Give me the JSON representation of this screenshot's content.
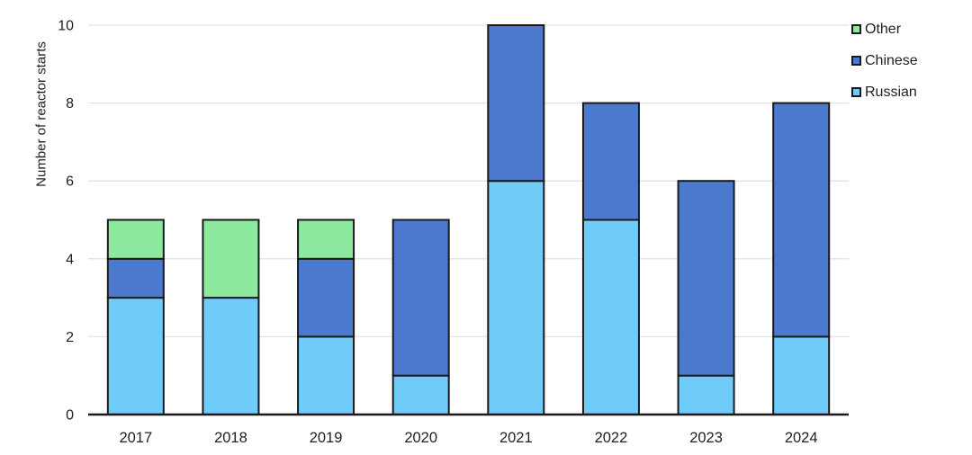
{
  "chart_data": {
    "type": "bar",
    "stacked": true,
    "title": "",
    "xlabel": "",
    "ylabel": "Number of reactor starts",
    "categories": [
      "2017",
      "2018",
      "2019",
      "2020",
      "2021",
      "2022",
      "2023",
      "2024"
    ],
    "series": [
      {
        "name": "Russian",
        "color": "#6FCBF7",
        "values": [
          3,
          3,
          2,
          1,
          6,
          5,
          1,
          2
        ]
      },
      {
        "name": "Chinese",
        "color": "#4B79CE",
        "values": [
          1,
          0,
          2,
          4,
          4,
          3,
          5,
          6
        ]
      },
      {
        "name": "Other",
        "color": "#8DE99E",
        "values": [
          1,
          2,
          1,
          0,
          0,
          0,
          0,
          0
        ]
      }
    ],
    "totals": [
      5,
      5,
      5,
      5,
      10,
      8,
      6,
      8
    ],
    "ylim": [
      0,
      10
    ],
    "yticks": [
      0,
      2,
      4,
      6,
      8,
      10
    ],
    "grid": true,
    "legend": {
      "position": "top-right",
      "items": [
        "Other",
        "Chinese",
        "Russian"
      ]
    }
  },
  "style_colors": {
    "background": "#FFFFFF",
    "bar_border": "#1A1A1A",
    "axis_line": "#1A1A1A",
    "gridline": "#E3E3E3",
    "text": "#1F1F1F"
  }
}
